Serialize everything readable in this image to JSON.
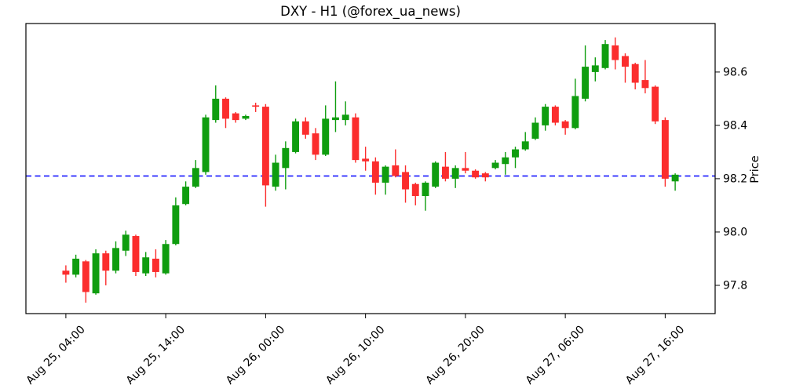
{
  "chart_data": {
    "type": "candlestick",
    "title": "DXY - H1 (@forex_ua_news)",
    "symbol": "DXY",
    "timeframe": "H1",
    "source_handle": "@forex_ua_news",
    "ylabel": "Price",
    "grid": false,
    "legend": null,
    "background": "#ffffff",
    "up_color": "#0f9d0f",
    "down_color": "#fb2d2d",
    "hline": {
      "price": 98.21,
      "color": "#0000ff",
      "style": "dashed"
    },
    "y_ticks": [
      "97.8",
      "98.0",
      "98.2",
      "98.4",
      "98.6"
    ],
    "y_tick_values": [
      97.8,
      98.0,
      98.2,
      98.4,
      98.6
    ],
    "x_ticks": [
      {
        "index": 0,
        "label": "Aug 25, 04:00"
      },
      {
        "index": 10,
        "label": "Aug 25, 14:00"
      },
      {
        "index": 20,
        "label": "Aug 26, 00:00"
      },
      {
        "index": 30,
        "label": "Aug 26, 10:00"
      },
      {
        "index": 40,
        "label": "Aug 26, 20:00"
      },
      {
        "index": 50,
        "label": "Aug 27, 06:00"
      },
      {
        "index": 60,
        "label": "Aug 27, 16:00"
      }
    ],
    "xlim": [
      -4,
      65
    ],
    "ylim": [
      97.694,
      98.782
    ],
    "candles": [
      {
        "t": "Aug 25 04:00",
        "o": 97.855,
        "h": 97.875,
        "l": 97.81,
        "c": 97.84
      },
      {
        "t": "Aug 25 05:00",
        "o": 97.84,
        "h": 97.915,
        "l": 97.83,
        "c": 97.9
      },
      {
        "t": "Aug 25 06:00",
        "o": 97.89,
        "h": 97.895,
        "l": 97.735,
        "c": 97.775
      },
      {
        "t": "Aug 25 07:00",
        "o": 97.77,
        "h": 97.935,
        "l": 97.765,
        "c": 97.92
      },
      {
        "t": "Aug 25 08:00",
        "o": 97.92,
        "h": 97.93,
        "l": 97.8,
        "c": 97.855
      },
      {
        "t": "Aug 25 09:00",
        "o": 97.855,
        "h": 97.965,
        "l": 97.845,
        "c": 97.94
      },
      {
        "t": "Aug 25 10:00",
        "o": 97.93,
        "h": 98.005,
        "l": 97.91,
        "c": 97.99
      },
      {
        "t": "Aug 25 11:00",
        "o": 97.985,
        "h": 97.99,
        "l": 97.835,
        "c": 97.85
      },
      {
        "t": "Aug 25 12:00",
        "o": 97.845,
        "h": 97.925,
        "l": 97.835,
        "c": 97.905
      },
      {
        "t": "Aug 25 13:00",
        "o": 97.9,
        "h": 97.935,
        "l": 97.83,
        "c": 97.85
      },
      {
        "t": "Aug 25 14:00",
        "o": 97.845,
        "h": 97.97,
        "l": 97.84,
        "c": 97.955
      },
      {
        "t": "Aug 25 15:00",
        "o": 97.955,
        "h": 98.13,
        "l": 97.95,
        "c": 98.1
      },
      {
        "t": "Aug 25 16:00",
        "o": 98.105,
        "h": 98.19,
        "l": 98.1,
        "c": 98.17
      },
      {
        "t": "Aug 25 17:00",
        "o": 98.17,
        "h": 98.27,
        "l": 98.165,
        "c": 98.24
      },
      {
        "t": "Aug 25 18:00",
        "o": 98.225,
        "h": 98.44,
        "l": 98.215,
        "c": 98.43
      },
      {
        "t": "Aug 25 19:00",
        "o": 98.42,
        "h": 98.55,
        "l": 98.41,
        "c": 98.5
      },
      {
        "t": "Aug 25 20:00",
        "o": 98.5,
        "h": 98.505,
        "l": 98.39,
        "c": 98.425
      },
      {
        "t": "Aug 25 21:00",
        "o": 98.445,
        "h": 98.45,
        "l": 98.41,
        "c": 98.42
      },
      {
        "t": "Aug 25 22:00",
        "o": 98.425,
        "h": 98.44,
        "l": 98.42,
        "c": 98.435
      },
      {
        "t": "Aug 25 23:00",
        "o": 98.475,
        "h": 98.485,
        "l": 98.45,
        "c": 98.47
      },
      {
        "t": "Aug 26 00:00",
        "o": 98.47,
        "h": 98.48,
        "l": 98.095,
        "c": 98.175
      },
      {
        "t": "Aug 26 01:00",
        "o": 98.17,
        "h": 98.29,
        "l": 98.155,
        "c": 98.26
      },
      {
        "t": "Aug 26 02:00",
        "o": 98.24,
        "h": 98.34,
        "l": 98.16,
        "c": 98.315
      },
      {
        "t": "Aug 26 03:00",
        "o": 98.3,
        "h": 98.425,
        "l": 98.295,
        "c": 98.415
      },
      {
        "t": "Aug 26 04:00",
        "o": 98.415,
        "h": 98.43,
        "l": 98.35,
        "c": 98.365
      },
      {
        "t": "Aug 26 05:00",
        "o": 98.37,
        "h": 98.39,
        "l": 98.27,
        "c": 98.29
      },
      {
        "t": "Aug 26 06:00",
        "o": 98.29,
        "h": 98.475,
        "l": 98.285,
        "c": 98.425
      },
      {
        "t": "Aug 26 07:00",
        "o": 98.42,
        "h": 98.565,
        "l": 98.375,
        "c": 98.43
      },
      {
        "t": "Aug 26 08:00",
        "o": 98.42,
        "h": 98.49,
        "l": 98.4,
        "c": 98.44
      },
      {
        "t": "Aug 26 09:00",
        "o": 98.43,
        "h": 98.445,
        "l": 98.26,
        "c": 98.27
      },
      {
        "t": "Aug 26 10:00",
        "o": 98.275,
        "h": 98.32,
        "l": 98.23,
        "c": 98.265
      },
      {
        "t": "Aug 26 11:00",
        "o": 98.265,
        "h": 98.28,
        "l": 98.14,
        "c": 98.185
      },
      {
        "t": "Aug 26 12:00",
        "o": 98.185,
        "h": 98.25,
        "l": 98.14,
        "c": 98.245
      },
      {
        "t": "Aug 26 13:00",
        "o": 98.25,
        "h": 98.31,
        "l": 98.205,
        "c": 98.21
      },
      {
        "t": "Aug 26 14:00",
        "o": 98.225,
        "h": 98.25,
        "l": 98.11,
        "c": 98.16
      },
      {
        "t": "Aug 26 15:00",
        "o": 98.18,
        "h": 98.185,
        "l": 98.1,
        "c": 98.135
      },
      {
        "t": "Aug 26 16:00",
        "o": 98.135,
        "h": 98.19,
        "l": 98.08,
        "c": 98.185
      },
      {
        "t": "Aug 26 17:00",
        "o": 98.17,
        "h": 98.265,
        "l": 98.165,
        "c": 98.26
      },
      {
        "t": "Aug 26 18:00",
        "o": 98.245,
        "h": 98.3,
        "l": 98.19,
        "c": 98.2
      },
      {
        "t": "Aug 26 19:00",
        "o": 98.2,
        "h": 98.25,
        "l": 98.165,
        "c": 98.24
      },
      {
        "t": "Aug 26 20:00",
        "o": 98.24,
        "h": 98.3,
        "l": 98.22,
        "c": 98.23
      },
      {
        "t": "Aug 26 21:00",
        "o": 98.23,
        "h": 98.235,
        "l": 98.2,
        "c": 98.205
      },
      {
        "t": "Aug 26 22:00",
        "o": 98.22,
        "h": 98.225,
        "l": 98.19,
        "c": 98.205
      },
      {
        "t": "Aug 26 23:00",
        "o": 98.24,
        "h": 98.27,
        "l": 98.235,
        "c": 98.26
      },
      {
        "t": "Aug 27 00:00",
        "o": 98.255,
        "h": 98.3,
        "l": 98.215,
        "c": 98.28
      },
      {
        "t": "Aug 27 01:00",
        "o": 98.28,
        "h": 98.32,
        "l": 98.24,
        "c": 98.31
      },
      {
        "t": "Aug 27 02:00",
        "o": 98.31,
        "h": 98.375,
        "l": 98.305,
        "c": 98.34
      },
      {
        "t": "Aug 27 03:00",
        "o": 98.35,
        "h": 98.43,
        "l": 98.345,
        "c": 98.41
      },
      {
        "t": "Aug 27 04:00",
        "o": 98.4,
        "h": 98.48,
        "l": 98.38,
        "c": 98.47
      },
      {
        "t": "Aug 27 05:00",
        "o": 98.47,
        "h": 98.475,
        "l": 98.4,
        "c": 98.41
      },
      {
        "t": "Aug 27 06:00",
        "o": 98.415,
        "h": 98.42,
        "l": 98.365,
        "c": 98.39
      },
      {
        "t": "Aug 27 07:00",
        "o": 98.39,
        "h": 98.575,
        "l": 98.385,
        "c": 98.51
      },
      {
        "t": "Aug 27 08:00",
        "o": 98.5,
        "h": 98.7,
        "l": 98.49,
        "c": 98.62
      },
      {
        "t": "Aug 27 09:00",
        "o": 98.6,
        "h": 98.655,
        "l": 98.565,
        "c": 98.625
      },
      {
        "t": "Aug 27 10:00",
        "o": 98.615,
        "h": 98.72,
        "l": 98.61,
        "c": 98.705
      },
      {
        "t": "Aug 27 11:00",
        "o": 98.7,
        "h": 98.73,
        "l": 98.61,
        "c": 98.645
      },
      {
        "t": "Aug 27 12:00",
        "o": 98.66,
        "h": 98.67,
        "l": 98.56,
        "c": 98.62
      },
      {
        "t": "Aug 27 13:00",
        "o": 98.63,
        "h": 98.635,
        "l": 98.535,
        "c": 98.56
      },
      {
        "t": "Aug 27 14:00",
        "o": 98.57,
        "h": 98.645,
        "l": 98.52,
        "c": 98.54
      },
      {
        "t": "Aug 27 15:00",
        "o": 98.545,
        "h": 98.55,
        "l": 98.405,
        "c": 98.415
      },
      {
        "t": "Aug 27 16:00",
        "o": 98.42,
        "h": 98.43,
        "l": 98.17,
        "c": 98.2
      },
      {
        "t": "Aug 27 17:00",
        "o": 98.19,
        "h": 98.22,
        "l": 98.155,
        "c": 98.215
      }
    ]
  }
}
